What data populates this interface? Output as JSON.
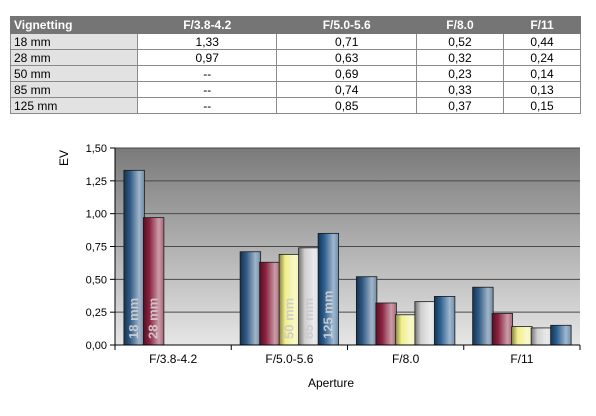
{
  "table": {
    "header": [
      "Vignetting",
      "F/3.8-4.2",
      "F/5.0-5.6",
      "F/8.0",
      "F/11"
    ],
    "rows": [
      {
        "label": "18 mm",
        "cells": [
          "1,33",
          "0,71",
          "0,52",
          "0,44"
        ]
      },
      {
        "label": "28 mm",
        "cells": [
          "0,97",
          "0,63",
          "0,32",
          "0,24"
        ]
      },
      {
        "label": "50 mm",
        "cells": [
          "--",
          "0,69",
          "0,23",
          "0,14"
        ]
      },
      {
        "label": "85 mm",
        "cells": [
          "--",
          "0,74",
          "0,33",
          "0,13"
        ]
      },
      {
        "label": "125 mm",
        "cells": [
          "--",
          "0,85",
          "0,37",
          "0,15"
        ]
      }
    ]
  },
  "chart_data": {
    "type": "bar",
    "categories": [
      "F/3.8-4.2",
      "F/5.0-5.6",
      "F/8.0",
      "F/11"
    ],
    "series": [
      {
        "name": "18 mm",
        "values": [
          1.33,
          0.71,
          0.52,
          0.44
        ],
        "color": "#2f5a86"
      },
      {
        "name": "28 mm",
        "values": [
          0.97,
          0.63,
          0.32,
          0.24
        ],
        "color": "#8c2240"
      },
      {
        "name": "50 mm",
        "values": [
          null,
          0.69,
          0.23,
          0.14
        ],
        "color": "#f2ef8a"
      },
      {
        "name": "85 mm",
        "values": [
          null,
          0.74,
          0.33,
          0.13
        ],
        "color": "#d0d0d0"
      },
      {
        "name": "125 mm",
        "values": [
          null,
          0.85,
          0.37,
          0.15
        ],
        "color": "#2c5f91"
      }
    ],
    "xlabel": "Aperture",
    "ylabel": "EV",
    "ylim": [
      0,
      1.5
    ],
    "yticks": [
      "0,00",
      "0,25",
      "0,50",
      "0,75",
      "1,00",
      "1,25",
      "1,50"
    ],
    "grid": true,
    "legend": "series names written vertically inside bars"
  }
}
